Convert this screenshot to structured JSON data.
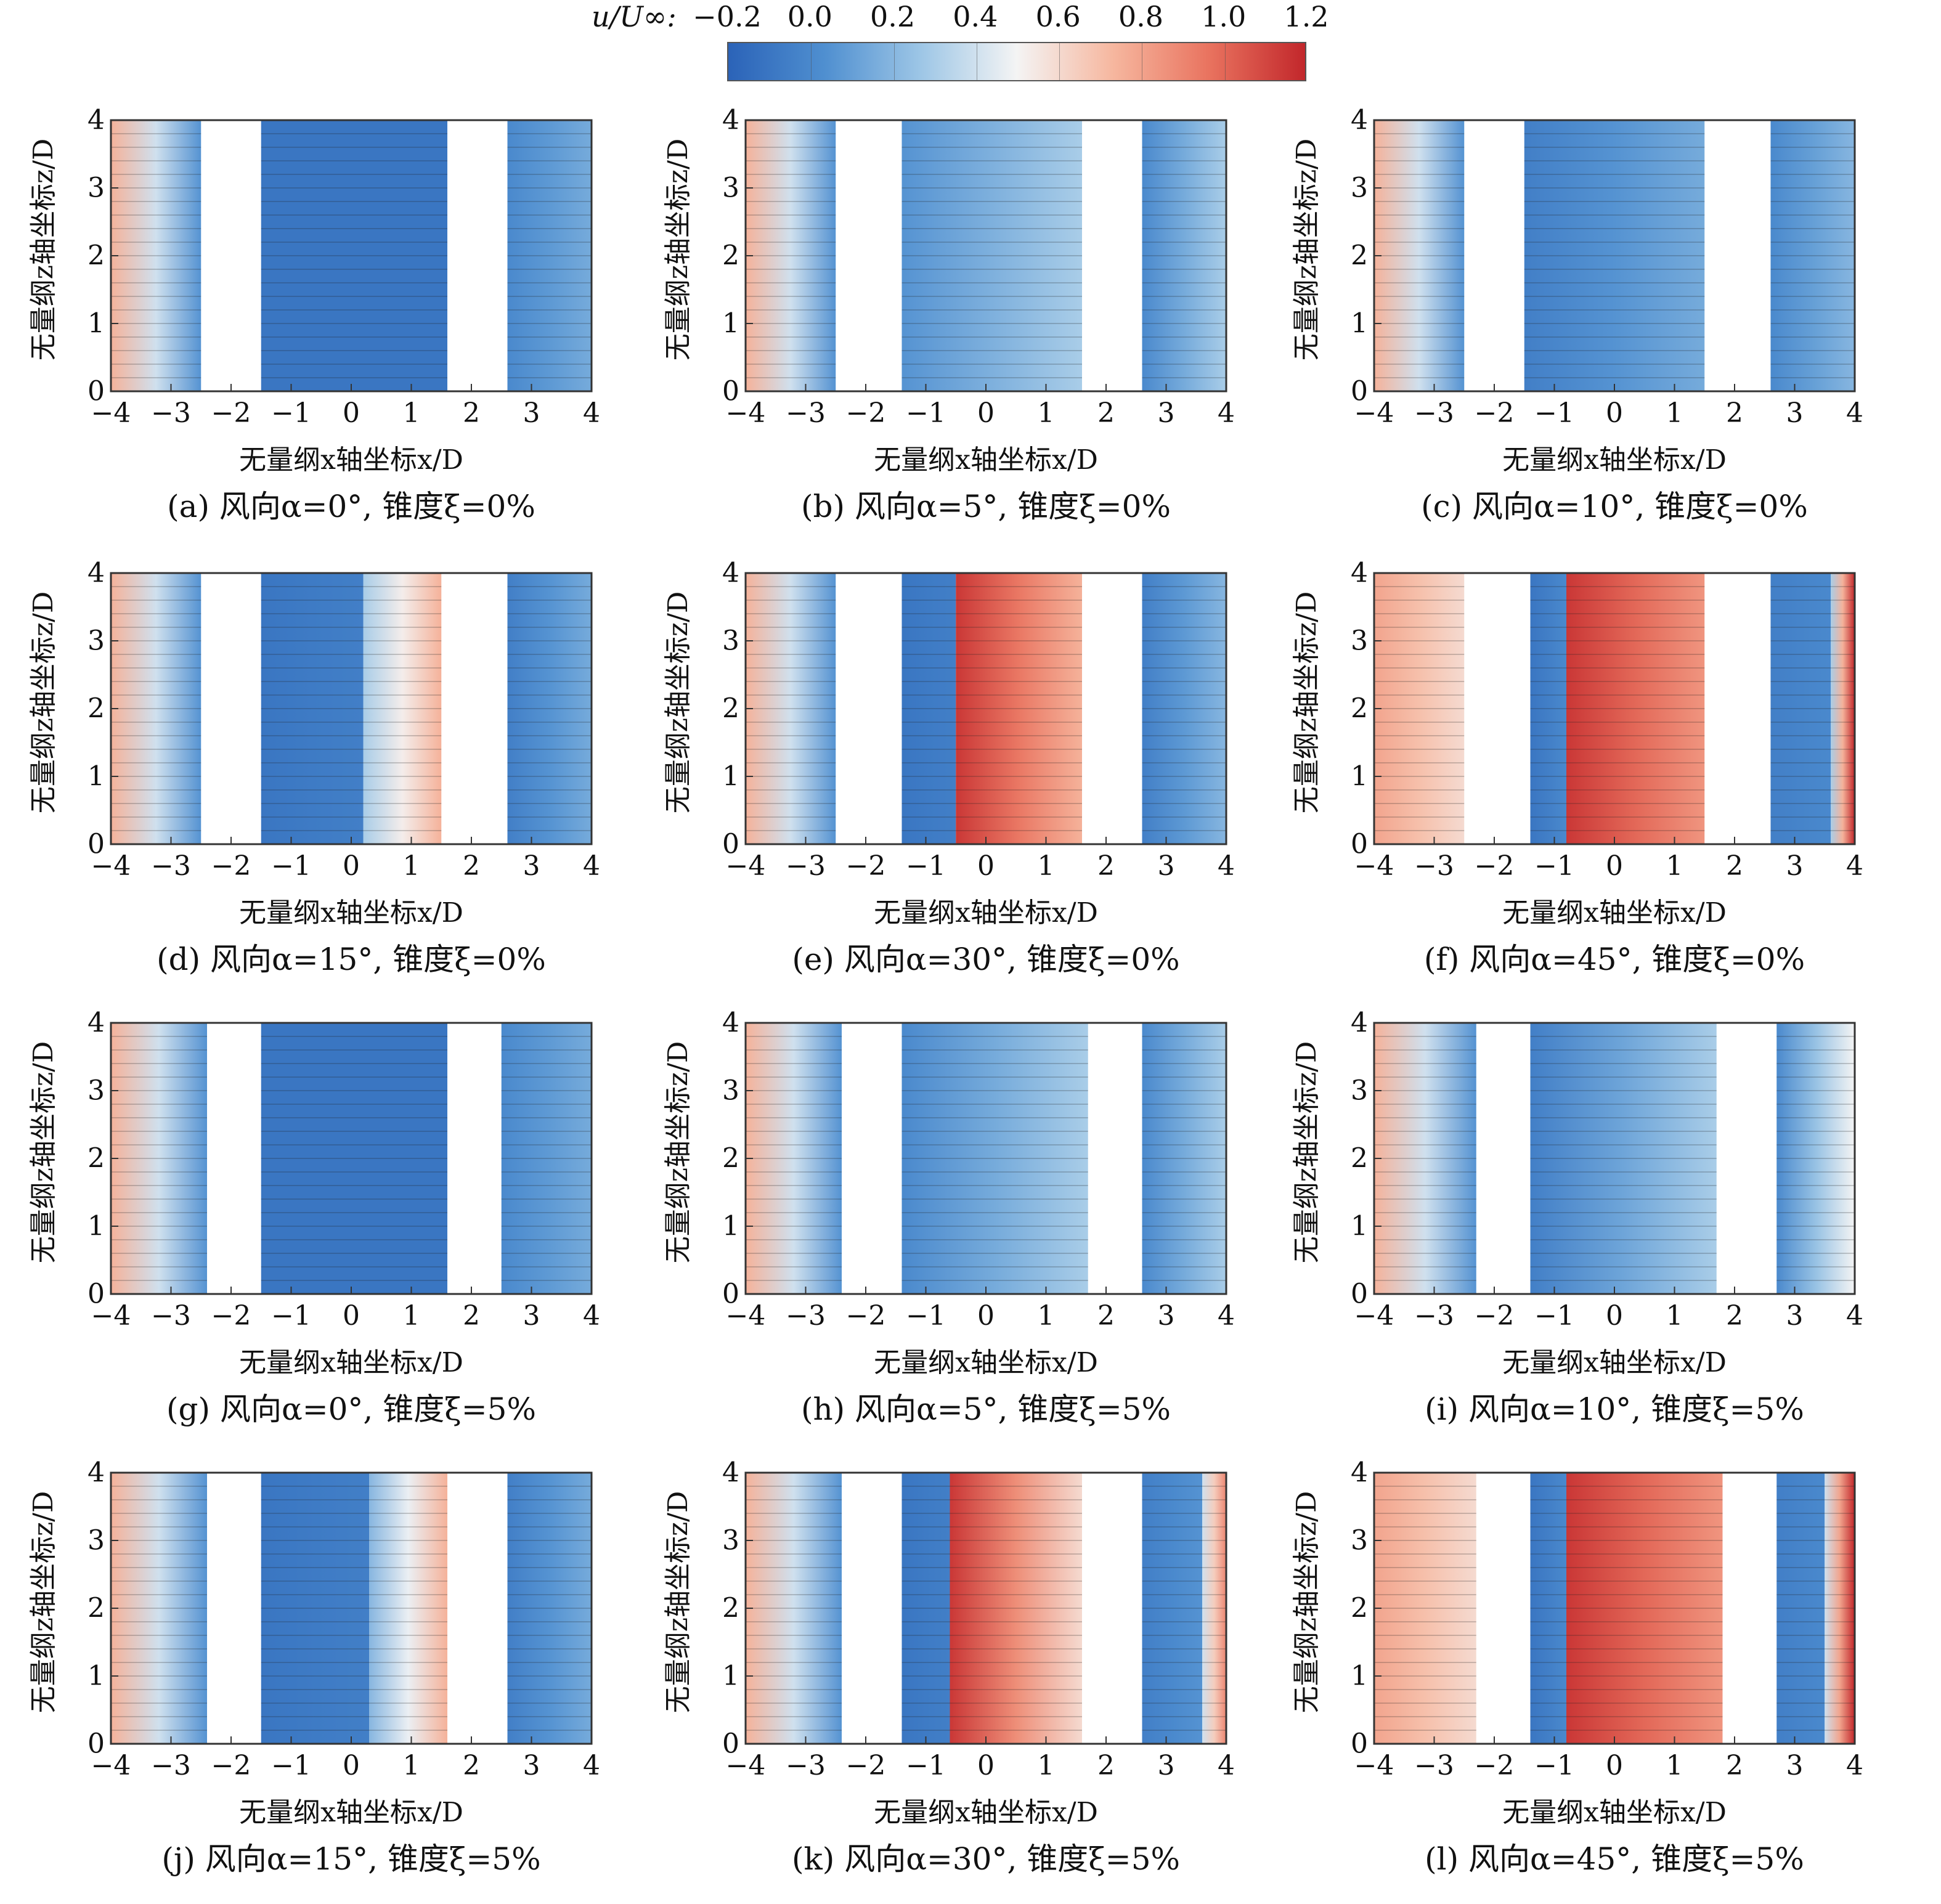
{
  "colorbar": {
    "label": "u/U∞:",
    "ticks": [
      "−0.2",
      "0.0",
      "0.2",
      "0.4",
      "0.6",
      "0.8",
      "1.0",
      "1.2"
    ],
    "range": [
      -0.2,
      1.2
    ],
    "stops": [
      "#2b63b8",
      "#4f8fd0",
      "#9dc6e6",
      "#f4f4f4",
      "#f6b79f",
      "#e9735f",
      "#c2272b"
    ]
  },
  "axes": {
    "xlabel": "无量纲x轴坐标x/D",
    "ylabel": "无量纲z轴坐标z/D",
    "xticks": [
      "−4",
      "−3",
      "−2",
      "−1",
      "0",
      "1",
      "2",
      "3",
      "4"
    ],
    "yticks": [
      "0",
      "1",
      "2",
      "3",
      "4"
    ]
  },
  "chart_data": [
    {
      "type": "heatmap",
      "caption": "(a) 风向α=0°, 锥度ξ=0%",
      "wind_direction_deg": 0,
      "taper_pct": 0,
      "xlim": [
        -4,
        4
      ],
      "ylim": [
        0,
        4
      ],
      "bands": [
        {
          "x": [
            -4,
            -2.5
          ],
          "u": [
            0.75,
            0.05
          ]
        },
        {
          "x": [
            -1.5,
            1.6
          ],
          "u": [
            -0.1,
            -0.1
          ]
        },
        {
          "x": [
            2.6,
            4
          ],
          "u": [
            0.0,
            0.15
          ]
        }
      ]
    },
    {
      "type": "heatmap",
      "caption": "(b) 风向α=5°, 锥度ξ=0%",
      "wind_direction_deg": 5,
      "taper_pct": 0,
      "xlim": [
        -4,
        4
      ],
      "ylim": [
        0,
        4
      ],
      "bands": [
        {
          "x": [
            -4,
            -2.5
          ],
          "u": [
            0.75,
            0.05
          ]
        },
        {
          "x": [
            -1.4,
            1.6
          ],
          "u": [
            0.05,
            0.3
          ]
        },
        {
          "x": [
            2.6,
            4
          ],
          "u": [
            0.0,
            0.3
          ]
        }
      ]
    },
    {
      "type": "heatmap",
      "caption": "(c) 风向α=10°, 锥度ξ=0%",
      "wind_direction_deg": 10,
      "taper_pct": 0,
      "xlim": [
        -4,
        4
      ],
      "ylim": [
        0,
        4
      ],
      "bands": [
        {
          "x": [
            -4,
            -2.5
          ],
          "u": [
            0.75,
            0.05
          ]
        },
        {
          "x": [
            -1.5,
            1.5
          ],
          "u": [
            -0.05,
            0.15
          ]
        },
        {
          "x": [
            2.6,
            4
          ],
          "u": [
            0.0,
            0.2
          ]
        }
      ]
    },
    {
      "type": "heatmap",
      "caption": "(d) 风向α=15°, 锥度ξ=0%",
      "wind_direction_deg": 15,
      "taper_pct": 0,
      "xlim": [
        -4,
        4
      ],
      "ylim": [
        0,
        4
      ],
      "bands": [
        {
          "x": [
            -4,
            -2.5
          ],
          "u": [
            0.75,
            0.05
          ]
        },
        {
          "x": [
            -1.5,
            0.2
          ],
          "u": [
            -0.1,
            -0.05
          ]
        },
        {
          "x": [
            0.2,
            1.5
          ],
          "u": [
            0.3,
            0.75
          ]
        },
        {
          "x": [
            2.6,
            4
          ],
          "u": [
            -0.05,
            0.15
          ]
        }
      ]
    },
    {
      "type": "heatmap",
      "caption": "(e) 风向α=30°, 锥度ξ=0%",
      "wind_direction_deg": 30,
      "taper_pct": 0,
      "xlim": [
        -4,
        4
      ],
      "ylim": [
        0,
        4
      ],
      "bands": [
        {
          "x": [
            -4,
            -2.5
          ],
          "u": [
            0.75,
            0.05
          ]
        },
        {
          "x": [
            -1.4,
            -0.5
          ],
          "u": [
            -0.1,
            -0.05
          ]
        },
        {
          "x": [
            -0.5,
            1.6
          ],
          "u": [
            1.15,
            0.75
          ]
        },
        {
          "x": [
            2.6,
            4
          ],
          "u": [
            -0.05,
            0.2
          ]
        }
      ]
    },
    {
      "type": "heatmap",
      "caption": "(f) 风向α=45°, 锥度ξ=0%",
      "wind_direction_deg": 45,
      "taper_pct": 0,
      "xlim": [
        -4,
        4
      ],
      "ylim": [
        0,
        4
      ],
      "bands": [
        {
          "x": [
            -4,
            -2.5
          ],
          "u": [
            0.8,
            0.6
          ]
        },
        {
          "x": [
            -1.4,
            -0.8
          ],
          "u": [
            -0.1,
            0.0
          ]
        },
        {
          "x": [
            -0.8,
            1.5
          ],
          "u": [
            1.15,
            0.85
          ]
        },
        {
          "x": [
            2.6,
            3.6
          ],
          "u": [
            -0.05,
            0.0
          ]
        },
        {
          "x": [
            3.6,
            4
          ],
          "u": [
            0.3,
            1.2
          ]
        }
      ]
    },
    {
      "type": "heatmap",
      "caption": "(g) 风向α=0°, 锥度ξ=5%",
      "wind_direction_deg": 0,
      "taper_pct": 5,
      "xlim": [
        -4,
        4
      ],
      "ylim": [
        0,
        4
      ],
      "bands": [
        {
          "x": [
            -4,
            -2.4
          ],
          "u": [
            0.75,
            0.05
          ]
        },
        {
          "x": [
            -1.5,
            1.6
          ],
          "u": [
            -0.1,
            -0.1
          ]
        },
        {
          "x": [
            2.5,
            4
          ],
          "u": [
            0.0,
            0.15
          ]
        }
      ]
    },
    {
      "type": "heatmap",
      "caption": "(h) 风向α=5°, 锥度ξ=5%",
      "wind_direction_deg": 5,
      "taper_pct": 5,
      "xlim": [
        -4,
        4
      ],
      "ylim": [
        0,
        4
      ],
      "bands": [
        {
          "x": [
            -4,
            -2.4
          ],
          "u": [
            0.75,
            0.05
          ]
        },
        {
          "x": [
            -1.4,
            1.7
          ],
          "u": [
            0.0,
            0.3
          ]
        },
        {
          "x": [
            2.6,
            4
          ],
          "u": [
            0.0,
            0.3
          ]
        }
      ]
    },
    {
      "type": "heatmap",
      "caption": "(i) 风向α=10°, 锥度ξ=5%",
      "wind_direction_deg": 10,
      "taper_pct": 5,
      "xlim": [
        -4,
        4
      ],
      "ylim": [
        0,
        4
      ],
      "bands": [
        {
          "x": [
            -4,
            -2.3
          ],
          "u": [
            0.75,
            0.05
          ]
        },
        {
          "x": [
            -1.4,
            1.7
          ],
          "u": [
            -0.05,
            0.3
          ]
        },
        {
          "x": [
            2.7,
            4
          ],
          "u": [
            0.0,
            0.5
          ]
        }
      ]
    },
    {
      "type": "heatmap",
      "caption": "(j) 风向α=15°, 锥度ξ=5%",
      "wind_direction_deg": 15,
      "taper_pct": 5,
      "xlim": [
        -4,
        4
      ],
      "ylim": [
        0,
        4
      ],
      "bands": [
        {
          "x": [
            -4,
            -2.4
          ],
          "u": [
            0.75,
            0.05
          ]
        },
        {
          "x": [
            -1.5,
            0.3
          ],
          "u": [
            -0.1,
            -0.05
          ]
        },
        {
          "x": [
            0.3,
            1.6
          ],
          "u": [
            0.2,
            0.75
          ]
        },
        {
          "x": [
            2.6,
            4
          ],
          "u": [
            -0.05,
            0.15
          ]
        }
      ]
    },
    {
      "type": "heatmap",
      "caption": "(k) 风向α=30°, 锥度ξ=5%",
      "wind_direction_deg": 30,
      "taper_pct": 5,
      "xlim": [
        -4,
        4
      ],
      "ylim": [
        0,
        4
      ],
      "bands": [
        {
          "x": [
            -4,
            -2.4
          ],
          "u": [
            0.75,
            0.05
          ]
        },
        {
          "x": [
            -1.4,
            -0.6
          ],
          "u": [
            -0.1,
            -0.05
          ]
        },
        {
          "x": [
            -0.6,
            1.6
          ],
          "u": [
            1.15,
            0.6
          ]
        },
        {
          "x": [
            2.6,
            3.6
          ],
          "u": [
            -0.05,
            0.05
          ]
        },
        {
          "x": [
            3.6,
            4
          ],
          "u": [
            0.4,
            0.9
          ]
        }
      ]
    },
    {
      "type": "heatmap",
      "caption": "(l) 风向α=45°, 锥度ξ=5%",
      "wind_direction_deg": 45,
      "taper_pct": 5,
      "xlim": [
        -4,
        4
      ],
      "ylim": [
        0,
        4
      ],
      "bands": [
        {
          "x": [
            -4,
            -2.3
          ],
          "u": [
            0.8,
            0.6
          ]
        },
        {
          "x": [
            -1.4,
            -0.8
          ],
          "u": [
            -0.1,
            0.0
          ]
        },
        {
          "x": [
            -0.8,
            1.8
          ],
          "u": [
            1.15,
            0.85
          ]
        },
        {
          "x": [
            2.7,
            3.5
          ],
          "u": [
            -0.05,
            0.0
          ]
        },
        {
          "x": [
            3.5,
            4
          ],
          "u": [
            0.4,
            1.2
          ]
        }
      ]
    }
  ]
}
